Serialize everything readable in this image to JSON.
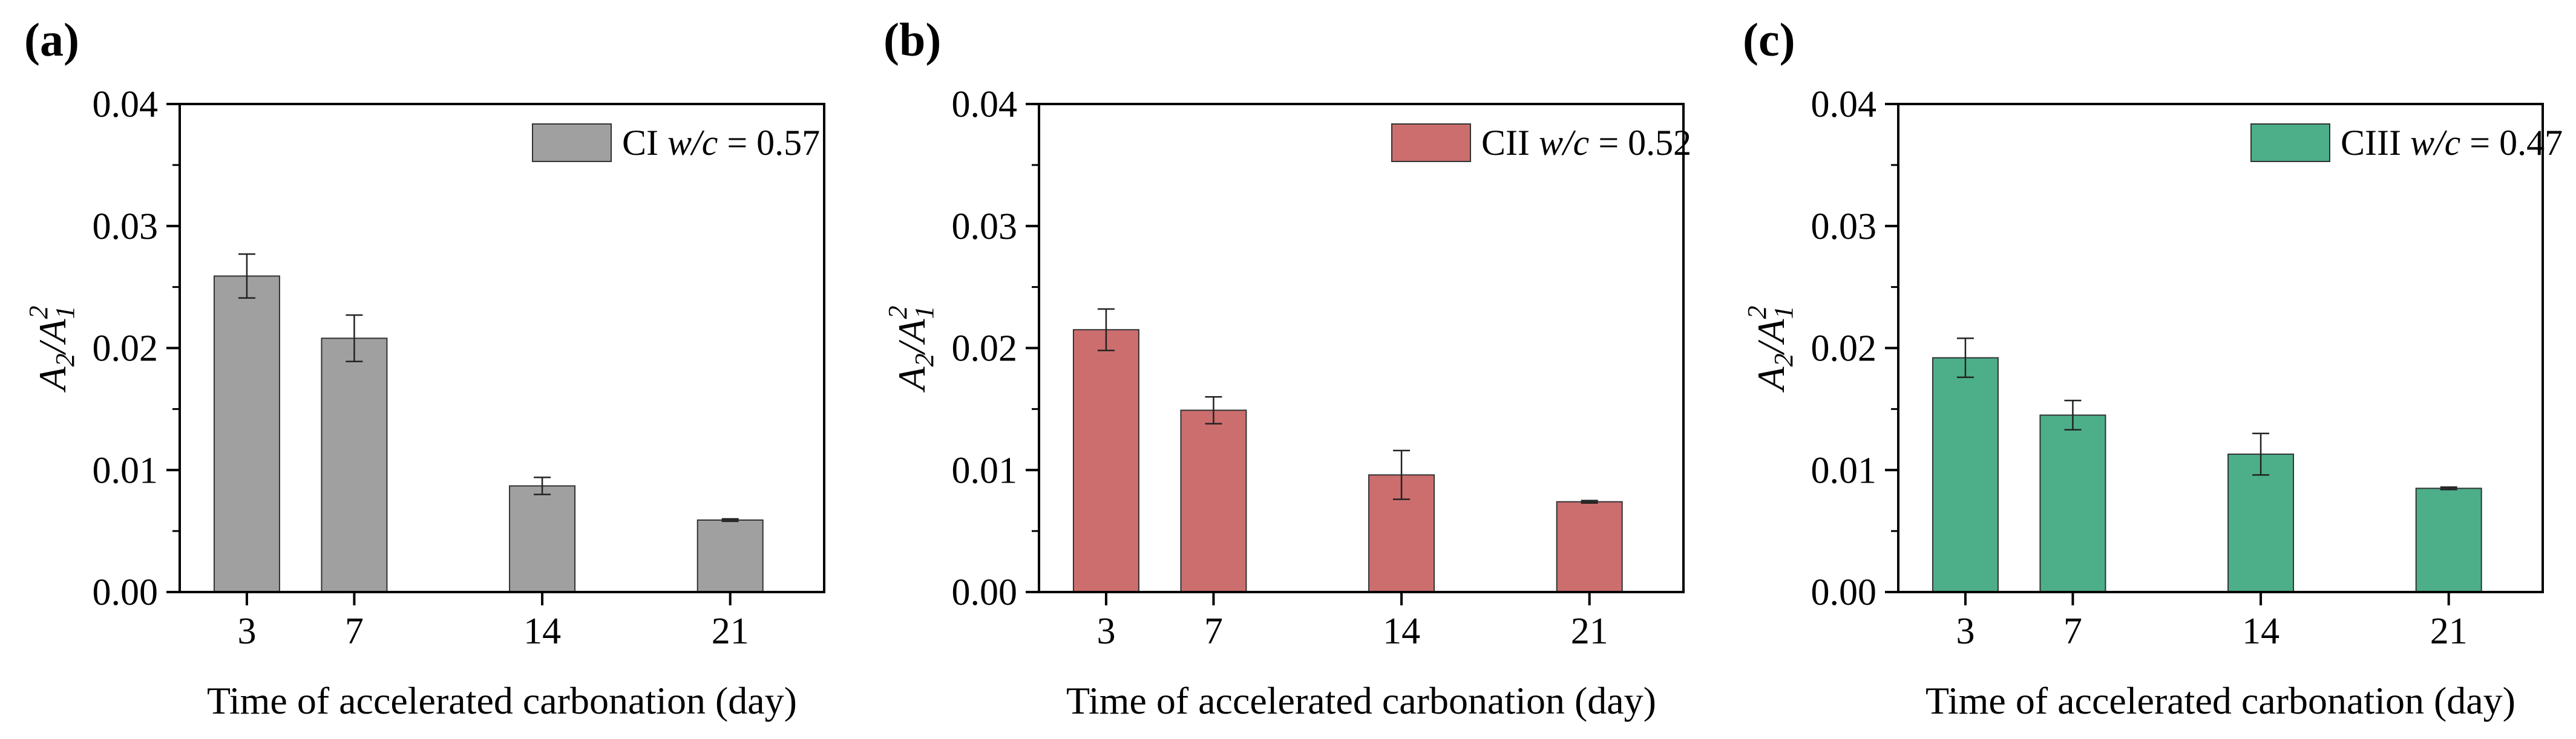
{
  "chart_data": [
    {
      "type": "bar",
      "panel_label": "(a)",
      "categories": [
        "3",
        "7",
        "14",
        "21"
      ],
      "x": [
        3,
        7,
        14,
        21
      ],
      "values": [
        0.0259,
        0.0208,
        0.0087,
        0.0059
      ],
      "error": [
        0.0018,
        0.0019,
        0.0007,
        0.0001
      ],
      "series_label": {
        "prefix": "CI ",
        "italic": "w/c",
        "suffix": " = 0.57"
      },
      "color": "#a0a0a0",
      "xlabel": "Time  of accelerated carbonation (day)",
      "ylabel": {
        "base1": "A",
        "sub1": "2",
        "slash": "/",
        "base2": "A",
        "sub2": "1",
        "sup2": "2"
      },
      "ylim": [
        0,
        0.04
      ],
      "yticks": [
        "0.00",
        "0.01",
        "0.02",
        "0.03",
        "0.04"
      ],
      "legend_position": "top-right",
      "grid": false
    },
    {
      "type": "bar",
      "panel_label": "(b)",
      "categories": [
        "3",
        "7",
        "14",
        "21"
      ],
      "x": [
        3,
        7,
        14,
        21
      ],
      "values": [
        0.0215,
        0.0149,
        0.0096,
        0.0074
      ],
      "error": [
        0.0017,
        0.0011,
        0.002,
        0.0001
      ],
      "series_label": {
        "prefix": "CII ",
        "italic": "w/c",
        "suffix": " = 0.52"
      },
      "color": "#cc6e6e",
      "xlabel": "Time  of accelerated carbonation (day)",
      "ylabel": {
        "base1": "A",
        "sub1": "2",
        "slash": "/",
        "base2": "A",
        "sub2": "1",
        "sup2": "2"
      },
      "ylim": [
        0,
        0.04
      ],
      "yticks": [
        "0.00",
        "0.01",
        "0.02",
        "0.03",
        "0.04"
      ],
      "legend_position": "top-right",
      "grid": false
    },
    {
      "type": "bar",
      "panel_label": "(c)",
      "categories": [
        "3",
        "7",
        "14",
        "21"
      ],
      "x": [
        3,
        7,
        14,
        21
      ],
      "values": [
        0.0192,
        0.0145,
        0.0113,
        0.0085
      ],
      "error": [
        0.0016,
        0.0012,
        0.0017,
        0.0001
      ],
      "series_label": {
        "prefix": "CIII ",
        "italic": "w/c",
        "suffix": " = 0.47"
      },
      "color": "#4caf8a",
      "xlabel": "Time  of accelerated carbonation (day)",
      "ylabel": {
        "base1": "A",
        "sub1": "2",
        "slash": "/",
        "base2": "A",
        "sub2": "1",
        "sup2": "2"
      },
      "ylim": [
        0,
        0.04
      ],
      "yticks": [
        "0.00",
        "0.01",
        "0.02",
        "0.03",
        "0.04"
      ],
      "legend_position": "top-right",
      "grid": false
    }
  ]
}
